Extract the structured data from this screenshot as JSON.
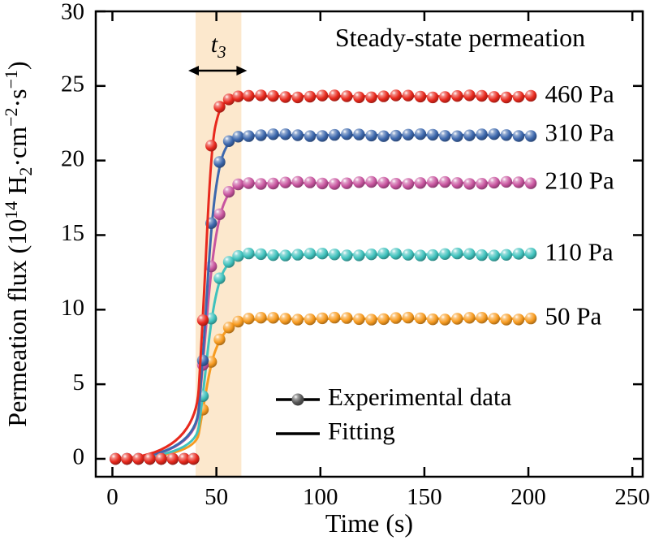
{
  "chart_data": {
    "type": "line+scatter",
    "title": "Steady-state permeation",
    "xlabel": "Time (s)",
    "ylabel": "Permeation flux (10^14 H2·cm^-2·s^-1)",
    "x_range": [
      -8,
      255
    ],
    "y_range": [
      -1.2,
      30
    ],
    "x_ticks": [
      0,
      50,
      100,
      150,
      200,
      250
    ],
    "y_ticks": [
      0,
      5,
      10,
      15,
      20,
      25,
      30
    ],
    "shaded_region": {
      "t_start": 40,
      "t_end": 62,
      "color": "#fce8cd",
      "label_plain": "t3",
      "label_segments": [
        {
          "text": "t",
          "style": "italic"
        },
        {
          "text": "3",
          "style": "sub"
        }
      ]
    },
    "ylabel_segments": [
      {
        "text": "Permeation flux (10",
        "style": "normal"
      },
      {
        "text": "14",
        "style": "sup"
      },
      {
        "text": " H",
        "style": "normal"
      },
      {
        "text": "2",
        "style": "sub"
      },
      {
        "text": "·cm",
        "style": "normal"
      },
      {
        "text": "−2",
        "style": "sup"
      },
      {
        "text": "·s",
        "style": "normal"
      },
      {
        "text": "−1",
        "style": "sup"
      },
      {
        "text": ")",
        "style": "normal"
      }
    ],
    "legend": {
      "position": "lower right",
      "entries": [
        {
          "marker": "sphere",
          "label": "Experimental data"
        },
        {
          "marker": "line",
          "label": "Fitting"
        }
      ]
    },
    "baseline": {
      "x": [
        1.5,
        7,
        12.5,
        18,
        23.5,
        29,
        34.5,
        39
      ],
      "y": 0
    },
    "plateau_markers": {
      "t_start": 65.5,
      "t_end": 201.5,
      "t_step": 5.9
    },
    "rise_start": 40,
    "series": [
      {
        "name": "50 Pa",
        "color": "#f79b20",
        "plateau": 9.4,
        "rise_points": [
          [
            43.5,
            3.3
          ],
          [
            47.5,
            6.5
          ],
          [
            51.5,
            8.0
          ],
          [
            56,
            8.8
          ],
          [
            60.5,
            9.2
          ]
        ],
        "label_x": 208
      },
      {
        "name": "110 Pa",
        "color": "#40c2bd",
        "plateau": 13.7,
        "rise_points": [
          [
            43.5,
            4.2
          ],
          [
            47.5,
            9.4
          ],
          [
            51.5,
            12.1
          ],
          [
            56,
            13.2
          ],
          [
            60.5,
            13.6
          ]
        ],
        "label_x": 208
      },
      {
        "name": "210 Pa",
        "color": "#c8559f",
        "plateau": 18.5,
        "rise_points": [
          [
            43.5,
            6.3
          ],
          [
            47.5,
            12.9
          ],
          [
            51.5,
            16.4
          ],
          [
            56,
            17.9
          ],
          [
            60.5,
            18.4
          ]
        ],
        "label_x": 208
      },
      {
        "name": "310 Pa",
        "color": "#3d68ad",
        "plateau": 21.7,
        "rise_points": [
          [
            43.5,
            6.6
          ],
          [
            47.5,
            15.8
          ],
          [
            51.5,
            19.9
          ],
          [
            56,
            21.3
          ],
          [
            60.5,
            21.6
          ]
        ],
        "label_x": 208
      },
      {
        "name": "460 Pa",
        "color": "#e8291d",
        "plateau": 24.3,
        "rise_points": [
          [
            43.5,
            9.3
          ],
          [
            47.5,
            21.0
          ],
          [
            51.5,
            23.6
          ],
          [
            56,
            24.1
          ],
          [
            60.5,
            24.3
          ]
        ],
        "label_x": 208
      }
    ],
    "colors": {
      "axis": "#000000",
      "text": "#000000",
      "legend_ball": "#555555",
      "region_fill": "#fce8cd"
    }
  }
}
